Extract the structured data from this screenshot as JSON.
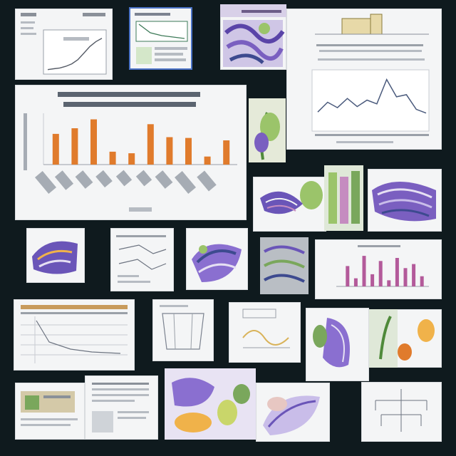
{
  "collage": {
    "background": "#0f1a1e",
    "card_background": "#f4f5f6",
    "accent_colors": [
      "#e07b2c",
      "#6a55b8",
      "#9bc46a",
      "#3d4a8f",
      "#c58cc0",
      "#f0b24a"
    ]
  },
  "cards": [
    {
      "id": "line-chart-small",
      "kind": "chart"
    },
    {
      "id": "chart-thumb-framed",
      "kind": "chart"
    },
    {
      "id": "illustration-purple-grid",
      "kind": "illustration"
    },
    {
      "id": "line-chart-bars",
      "kind": "chart"
    },
    {
      "id": "bar-chart-large",
      "kind": "chart"
    },
    {
      "id": "illustration-plant",
      "kind": "illustration"
    },
    {
      "id": "illustration-leaf-swirl",
      "kind": "illustration"
    },
    {
      "id": "illustration-green-columns",
      "kind": "illustration"
    },
    {
      "id": "illustration-purple-wave",
      "kind": "illustration"
    },
    {
      "id": "illustration-swirl-small",
      "kind": "illustration"
    },
    {
      "id": "document-sketch",
      "kind": "document"
    },
    {
      "id": "illustration-purple-tangle",
      "kind": "illustration"
    },
    {
      "id": "illustration-grey-grid",
      "kind": "illustration"
    },
    {
      "id": "bar-chart-pink",
      "kind": "chart"
    },
    {
      "id": "table-sheet",
      "kind": "document"
    },
    {
      "id": "sketch-frame",
      "kind": "diagram"
    },
    {
      "id": "sketch-wave",
      "kind": "diagram"
    },
    {
      "id": "illustration-botanical-wide",
      "kind": "illustration"
    },
    {
      "id": "illustration-fruit-tall",
      "kind": "illustration"
    },
    {
      "id": "document-photo-strip",
      "kind": "document"
    },
    {
      "id": "document-text-sheet",
      "kind": "document"
    },
    {
      "id": "illustration-fruit-collage",
      "kind": "illustration"
    },
    {
      "id": "illustration-feather",
      "kind": "illustration"
    },
    {
      "id": "diagram-tree",
      "kind": "diagram"
    }
  ],
  "bar_chart_large": {
    "type": "bar",
    "values": [
      38,
      45,
      56,
      16,
      14,
      50,
      34,
      33,
      10,
      30
    ],
    "ylim": [
      0,
      60
    ],
    "color": "#e07b2c"
  },
  "line_chart_bars": {
    "type": "line",
    "values": [
      30,
      48,
      38,
      55,
      40,
      52,
      45,
      90,
      58,
      62,
      35,
      28
    ],
    "ylim": [
      0,
      100
    ],
    "color": "#4a5a7c"
  },
  "line_chart_small": {
    "type": "line",
    "values": [
      2,
      3,
      4,
      6,
      9,
      14,
      22,
      30,
      36,
      40
    ],
    "ylim": [
      0,
      45
    ],
    "color": "#555b66"
  },
  "bar_chart_pink": {
    "type": "bar",
    "values": [
      20,
      8,
      30,
      12,
      25,
      6,
      28,
      18,
      22,
      10
    ],
    "ylim": [
      0,
      35
    ],
    "color": "#b35a9a"
  }
}
